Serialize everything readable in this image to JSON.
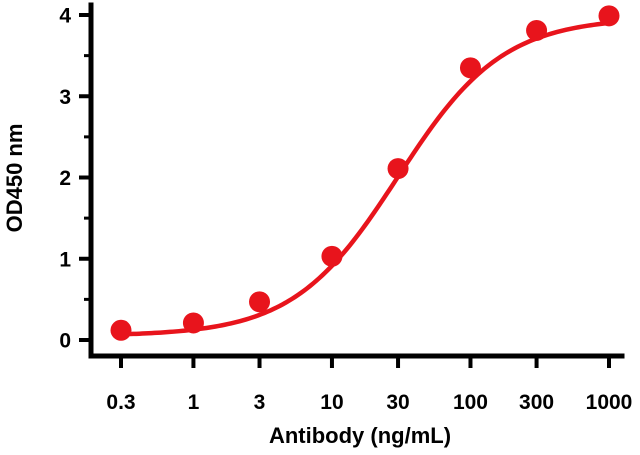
{
  "chart_data": {
    "type": "scatter",
    "title": "",
    "xlabel": "Antibody (ng/mL)",
    "ylabel": "OD450 nm",
    "x_scale": "log",
    "x_ticks": [
      0.3,
      1,
      3,
      10,
      30,
      100,
      300,
      1000
    ],
    "x_tick_labels": [
      "0.3",
      "1",
      "3",
      "10",
      "30",
      "100",
      "300",
      "1000"
    ],
    "y_ticks": [
      0,
      1,
      2,
      3,
      4
    ],
    "y_tick_labels": [
      "0",
      "1",
      "2",
      "3",
      "4"
    ],
    "xlim": [
      0.3,
      1000
    ],
    "ylim": [
      0,
      4
    ],
    "grid": false,
    "series": [
      {
        "x": [
          0.3,
          1,
          3,
          10,
          30,
          100,
          300,
          1000
        ],
        "y": [
          0.12,
          0.21,
          0.47,
          1.03,
          2.11,
          3.35,
          3.81,
          3.99
        ],
        "fit": "sigmoid"
      }
    ],
    "colors": {
      "series": "#e8141c",
      "axis": "#000000"
    }
  }
}
